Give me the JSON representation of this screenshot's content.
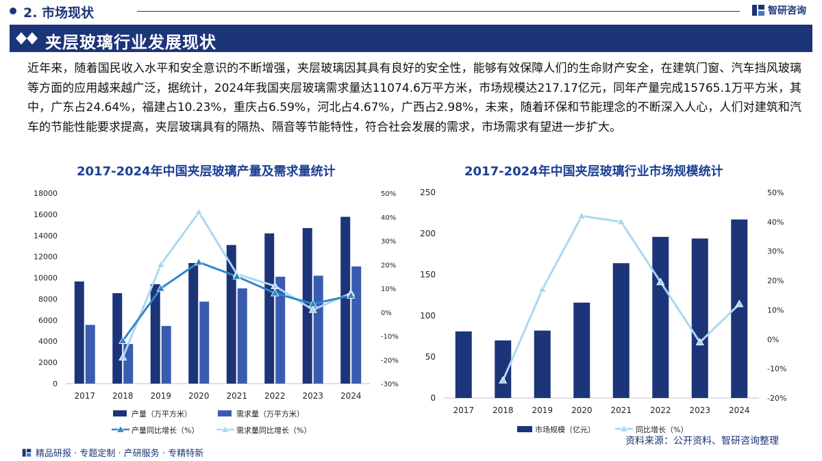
{
  "header": {
    "section_label": "2. 市场现状",
    "brand_name": "智研咨询"
  },
  "banner": {
    "title": "夹层玻璃行业发展现状"
  },
  "intro": "近年来，随着国民收入水平和安全意识的不断增强，夹层玻璃因其具有良好的安全性，能够有效保障人们的生命财产安全，在建筑门窗、汽车挡风玻璃等方面的应用越来越广泛，据统计，2024年我国夹层玻璃需求量达11074.6万平方米，市场规模达217.17亿元，同年产量完成15765.1万平方米，其中，广东占24.64%，福建占10.23%，重庆占6.59%，河北占4.67%，广西占2.98%，未来，随着环保和节能理念的不断深入人心，人们对建筑和汽车的节能性能要求提高，夹层玻璃具有的隔热、隔音等节能特性，符合社会发展的需求，市场需求有望进一步扩大。",
  "footer": {
    "text": "精品研报 · 专题定制 · 产研服务 · 专精特新"
  },
  "source": "资料来源：公开资料、智研咨询整理",
  "colors": {
    "navy": "#1c3478",
    "bar_dark": "#1c3478",
    "bar_mid": "#3a5cb0",
    "line_mid": "#2f86c8",
    "line_light": "#a9d8f2",
    "title_blue": "#1c3f94"
  },
  "chart_data": [
    {
      "type": "bar",
      "title": "2017-2024年中国夹层玻璃产量及需求量统计",
      "categories": [
        "2017",
        "2018",
        "2019",
        "2020",
        "2021",
        "2022",
        "2023",
        "2024"
      ],
      "ylim": [
        0,
        18000
      ],
      "yticks": [
        "0",
        "2000",
        "4000",
        "6000",
        "8000",
        "10000",
        "12000",
        "14000",
        "16000",
        "18000"
      ],
      "y2lim": [
        -30,
        50
      ],
      "y2ticks": [
        "-30%",
        "-20%",
        "-10%",
        "0%",
        "10%",
        "20%",
        "30%",
        "40%",
        "50%"
      ],
      "series": [
        {
          "name": "产量（万平方米）",
          "kind": "bar",
          "values": [
            9650,
            8550,
            9400,
            11400,
            13100,
            14200,
            14700,
            15765.1
          ]
        },
        {
          "name": "需求量（万平方米）",
          "kind": "bar",
          "values": [
            5550,
            3750,
            5450,
            7750,
            9000,
            10100,
            10200,
            11074.6
          ]
        },
        {
          "name": "产量同比增长（%）",
          "kind": "line",
          "values": [
            null,
            -12,
            10,
            21,
            15,
            8,
            3.5,
            7
          ]
        },
        {
          "name": "需求量同比增长（%）",
          "kind": "line",
          "values": [
            null,
            -19,
            20,
            42,
            16,
            11,
            1,
            8
          ]
        }
      ]
    },
    {
      "type": "bar",
      "title": "2017-2024年中国夹层玻璃行业市场规模统计",
      "categories": [
        "2017",
        "2018",
        "2019",
        "2020",
        "2021",
        "2022",
        "2023",
        "2024"
      ],
      "ylim": [
        0,
        250
      ],
      "yticks": [
        "0",
        "50",
        "100",
        "150",
        "200",
        "250"
      ],
      "y2lim": [
        -20,
        50
      ],
      "y2ticks": [
        "-20%",
        "-10%",
        "0%",
        "10%",
        "20%",
        "30%",
        "40%",
        "50%"
      ],
      "series": [
        {
          "name": "市场规模（亿元）",
          "kind": "bar",
          "values": [
            81,
            70,
            82,
            116,
            164,
            196,
            194,
            217.17
          ]
        },
        {
          "name": "同比增长（%）",
          "kind": "line",
          "values": [
            null,
            -14,
            17,
            42,
            40,
            19.5,
            -1,
            12
          ]
        }
      ]
    }
  ]
}
